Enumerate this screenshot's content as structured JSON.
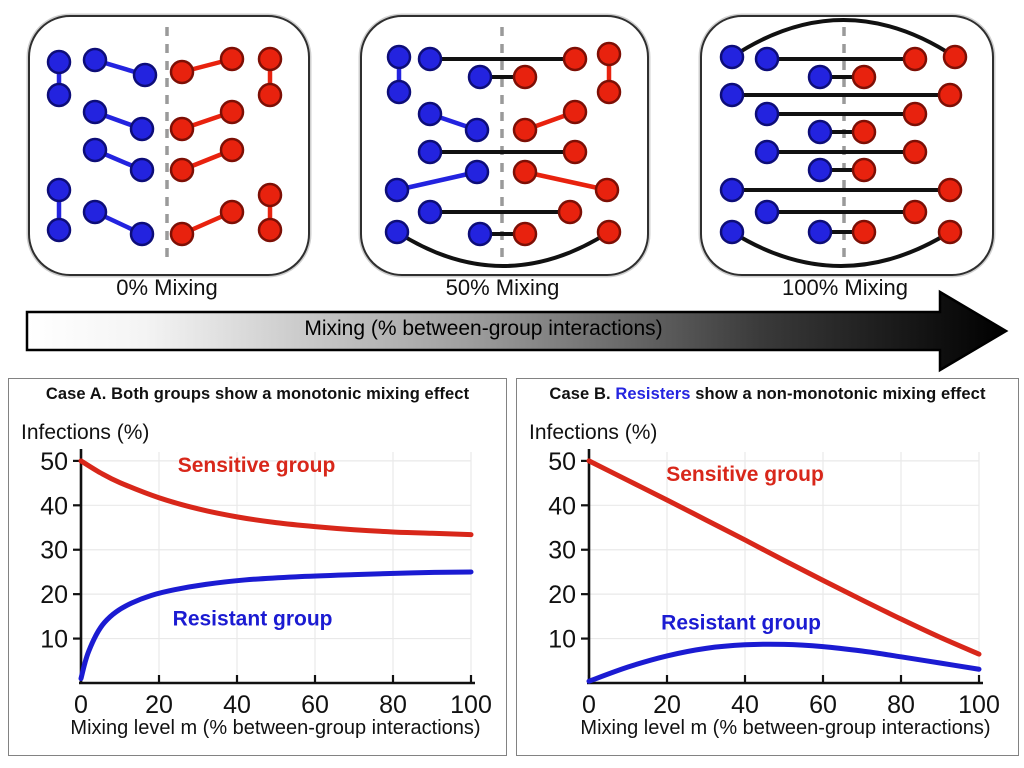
{
  "figure": {
    "mixing_row": {
      "panels": [
        {
          "label": "0% Mixing",
          "divider_x": 137,
          "edges": [
            [
              29,
              45,
              29,
              78,
              "b",
              0
            ],
            [
              65,
              43,
              115,
              58,
              "b",
              0
            ],
            [
              65,
              95,
              112,
              112,
              "b",
              0
            ],
            [
              65,
              133,
              112,
              153,
              "b",
              0
            ],
            [
              29,
              173,
              29,
              213,
              "b",
              0
            ],
            [
              65,
              195,
              112,
              217,
              "b",
              0
            ],
            [
              152,
              55,
              202,
              42,
              "r",
              0
            ],
            [
              240,
              42,
              240,
              78,
              "r",
              0
            ],
            [
              152,
              112,
              202,
              95,
              "r",
              0
            ],
            [
              152,
              153,
              202,
              133,
              "r",
              0
            ],
            [
              152,
              217,
              202,
              195,
              "r",
              0
            ],
            [
              240,
              178,
              240,
              213,
              "r",
              0
            ]
          ]
        },
        {
          "label": "50% Mixing",
          "divider_x": 140,
          "edges": [
            [
              37,
              40,
              37,
              75,
              "b",
              0
            ],
            [
              68,
              42,
              213,
              42,
              "x",
              0
            ],
            [
              247,
              37,
              247,
              75,
              "r",
              0
            ],
            [
              118,
              60,
              163,
              60,
              "x",
              0
            ],
            [
              68,
              97,
              115,
              113,
              "b",
              0
            ],
            [
              163,
              113,
              213,
              95,
              "r",
              0
            ],
            [
              68,
              135,
              213,
              135,
              "x",
              0
            ],
            [
              35,
              173,
              115,
              155,
              "b",
              0
            ],
            [
              163,
              155,
              245,
              173,
              "r",
              0
            ],
            [
              68,
              195,
              208,
              195,
              "x",
              0
            ],
            [
              118,
              217,
              163,
              217,
              "x",
              0
            ],
            [
              35,
              215,
              247,
              215,
              "x",
              68
            ]
          ]
        },
        {
          "label": "100% Mixing",
          "divider_x": 142,
          "edges": [
            [
              30,
              40,
              253,
              40,
              "x",
              -74
            ],
            [
              65,
              42,
              213,
              42,
              "x",
              0
            ],
            [
              118,
              60,
              162,
              60,
              "x",
              0
            ],
            [
              30,
              78,
              248,
              78,
              "x",
              0
            ],
            [
              65,
              97,
              213,
              97,
              "x",
              0
            ],
            [
              118,
              115,
              162,
              115,
              "x",
              0
            ],
            [
              65,
              135,
              213,
              135,
              "x",
              0
            ],
            [
              118,
              153,
              162,
              153,
              "x",
              0
            ],
            [
              30,
              173,
              248,
              173,
              "x",
              0
            ],
            [
              65,
              195,
              213,
              195,
              "x",
              0
            ],
            [
              118,
              215,
              162,
              215,
              "x",
              0
            ],
            [
              30,
              215,
              248,
              215,
              "x",
              68
            ]
          ]
        }
      ],
      "colors": {
        "blue_fill": "#2323df",
        "blue_stroke": "#0d0d78",
        "red_fill": "#e8220e",
        "red_stroke": "#7d0f05",
        "cross_line": "#111111",
        "divider": "#9a9a9a"
      }
    },
    "arrow": {
      "label": "Mixing (% between-group interactions)"
    }
  },
  "chart_data": [
    {
      "type": "line",
      "title_parts": [
        {
          "text": "Case A. Both groups show a monotonic mixing effect",
          "color": "#111111"
        }
      ],
      "ylabel": "Infections (%)",
      "xlabel": "Mixing level m (% between-group interactions)",
      "xlim": [
        0,
        100
      ],
      "ylim": [
        0,
        52
      ],
      "x_ticks": [
        0,
        20,
        40,
        60,
        80,
        100
      ],
      "y_ticks": [
        10,
        20,
        30,
        40,
        50
      ],
      "grid": true,
      "legend_position": "inline-labels",
      "series": [
        {
          "name": "Sensitive group",
          "color": "#d8271a",
          "x": [
            0,
            5,
            10,
            20,
            30,
            40,
            50,
            60,
            70,
            80,
            90,
            100
          ],
          "y": [
            50,
            47.3,
            45.1,
            41.7,
            39.2,
            37.4,
            36.1,
            35.2,
            34.5,
            34.0,
            33.7,
            33.4
          ],
          "label_x": 45,
          "label_y": 47.5
        },
        {
          "name": "Resistant group",
          "color": "#1b1bd2",
          "x": [
            0,
            1,
            2,
            4,
            6,
            9,
            13,
            18,
            24,
            32,
            42,
            55,
            70,
            85,
            100
          ],
          "y": [
            1,
            4.5,
            7.2,
            11,
            13.6,
            16,
            18,
            19.7,
            21,
            22.2,
            23.2,
            23.9,
            24.4,
            24.8,
            25
          ],
          "label_x": 44,
          "label_y": 13
        }
      ]
    },
    {
      "type": "line",
      "title_parts": [
        {
          "text": "Case B. ",
          "color": "#111111"
        },
        {
          "text": "Resisters",
          "color": "#2424e0"
        },
        {
          "text": " show a non-monotonic mixing effect",
          "color": "#111111"
        }
      ],
      "ylabel": "Infections (%)",
      "xlabel": "Mixing level m (% between-group interactions)",
      "xlim": [
        0,
        100
      ],
      "ylim": [
        0,
        52
      ],
      "x_ticks": [
        0,
        20,
        40,
        60,
        80,
        100
      ],
      "y_ticks": [
        10,
        20,
        30,
        40,
        50
      ],
      "grid": true,
      "legend_position": "inline-labels",
      "series": [
        {
          "name": "Sensitive group",
          "color": "#d8271a",
          "x": [
            0,
            10,
            20,
            30,
            40,
            50,
            60,
            70,
            80,
            90,
            100
          ],
          "y": [
            50,
            45.6,
            41.2,
            36.7,
            32.2,
            27.6,
            23.1,
            18.7,
            14.4,
            10.3,
            6.5
          ],
          "label_x": 40,
          "label_y": 45.5
        },
        {
          "name": "Resistant group",
          "color": "#1b1bd2",
          "x": [
            0,
            10,
            20,
            30,
            40,
            50,
            60,
            70,
            80,
            90,
            100
          ],
          "y": [
            0.4,
            3.6,
            6.1,
            7.8,
            8.6,
            8.7,
            8.2,
            7.2,
            5.9,
            4.5,
            3.1
          ],
          "label_x": 39,
          "label_y": 12
        }
      ]
    }
  ]
}
